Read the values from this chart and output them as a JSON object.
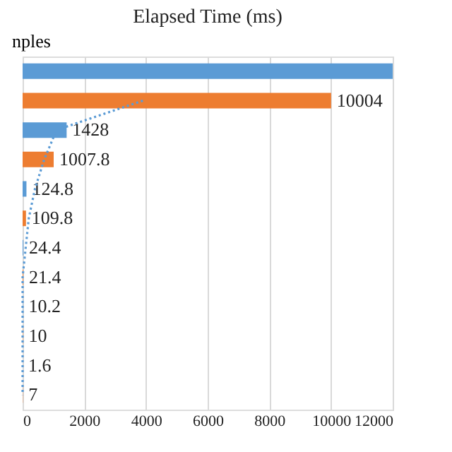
{
  "chart_data": {
    "type": "bar",
    "orientation": "horizontal",
    "title": "Elapsed Time (ms)",
    "ylabel": "nples",
    "categories": [
      null,
      null,
      null,
      null,
      null,
      null,
      null,
      null,
      null,
      null,
      null,
      null
    ],
    "series": [
      {
        "colors": [
          "#5b9bd5",
          "#ed7d31",
          "#5b9bd5",
          "#ed7d31",
          "#5b9bd5",
          "#ed7d31",
          "#5b9bd5",
          "#ed7d31",
          "#5b9bd5",
          "#ed7d31",
          "#5b9bd5",
          "#ed7d31"
        ],
        "values": [
          12000,
          10004,
          1428,
          1007.8,
          124.8,
          109.8,
          24.4,
          21.4,
          10.2,
          10,
          1.6,
          7
        ],
        "value_labels": [
          null,
          "10004",
          "1428",
          "1007.8",
          "124.8",
          "109.8",
          "24.4",
          "21.4",
          "10.2",
          "10",
          "1.6",
          "7"
        ]
      },
      {
        "type": "line",
        "color": "#5b9bd5",
        "line_style": "dotted",
        "values": [
          null,
          3900,
          1100,
          700,
          400,
          200,
          100,
          0,
          0,
          0,
          0,
          0
        ]
      }
    ],
    "xlim": [
      0,
      12000
    ],
    "xticks": [
      0,
      2000,
      4000,
      6000,
      8000,
      10000,
      12000
    ],
    "grid": "x",
    "tick_labels": "x"
  }
}
